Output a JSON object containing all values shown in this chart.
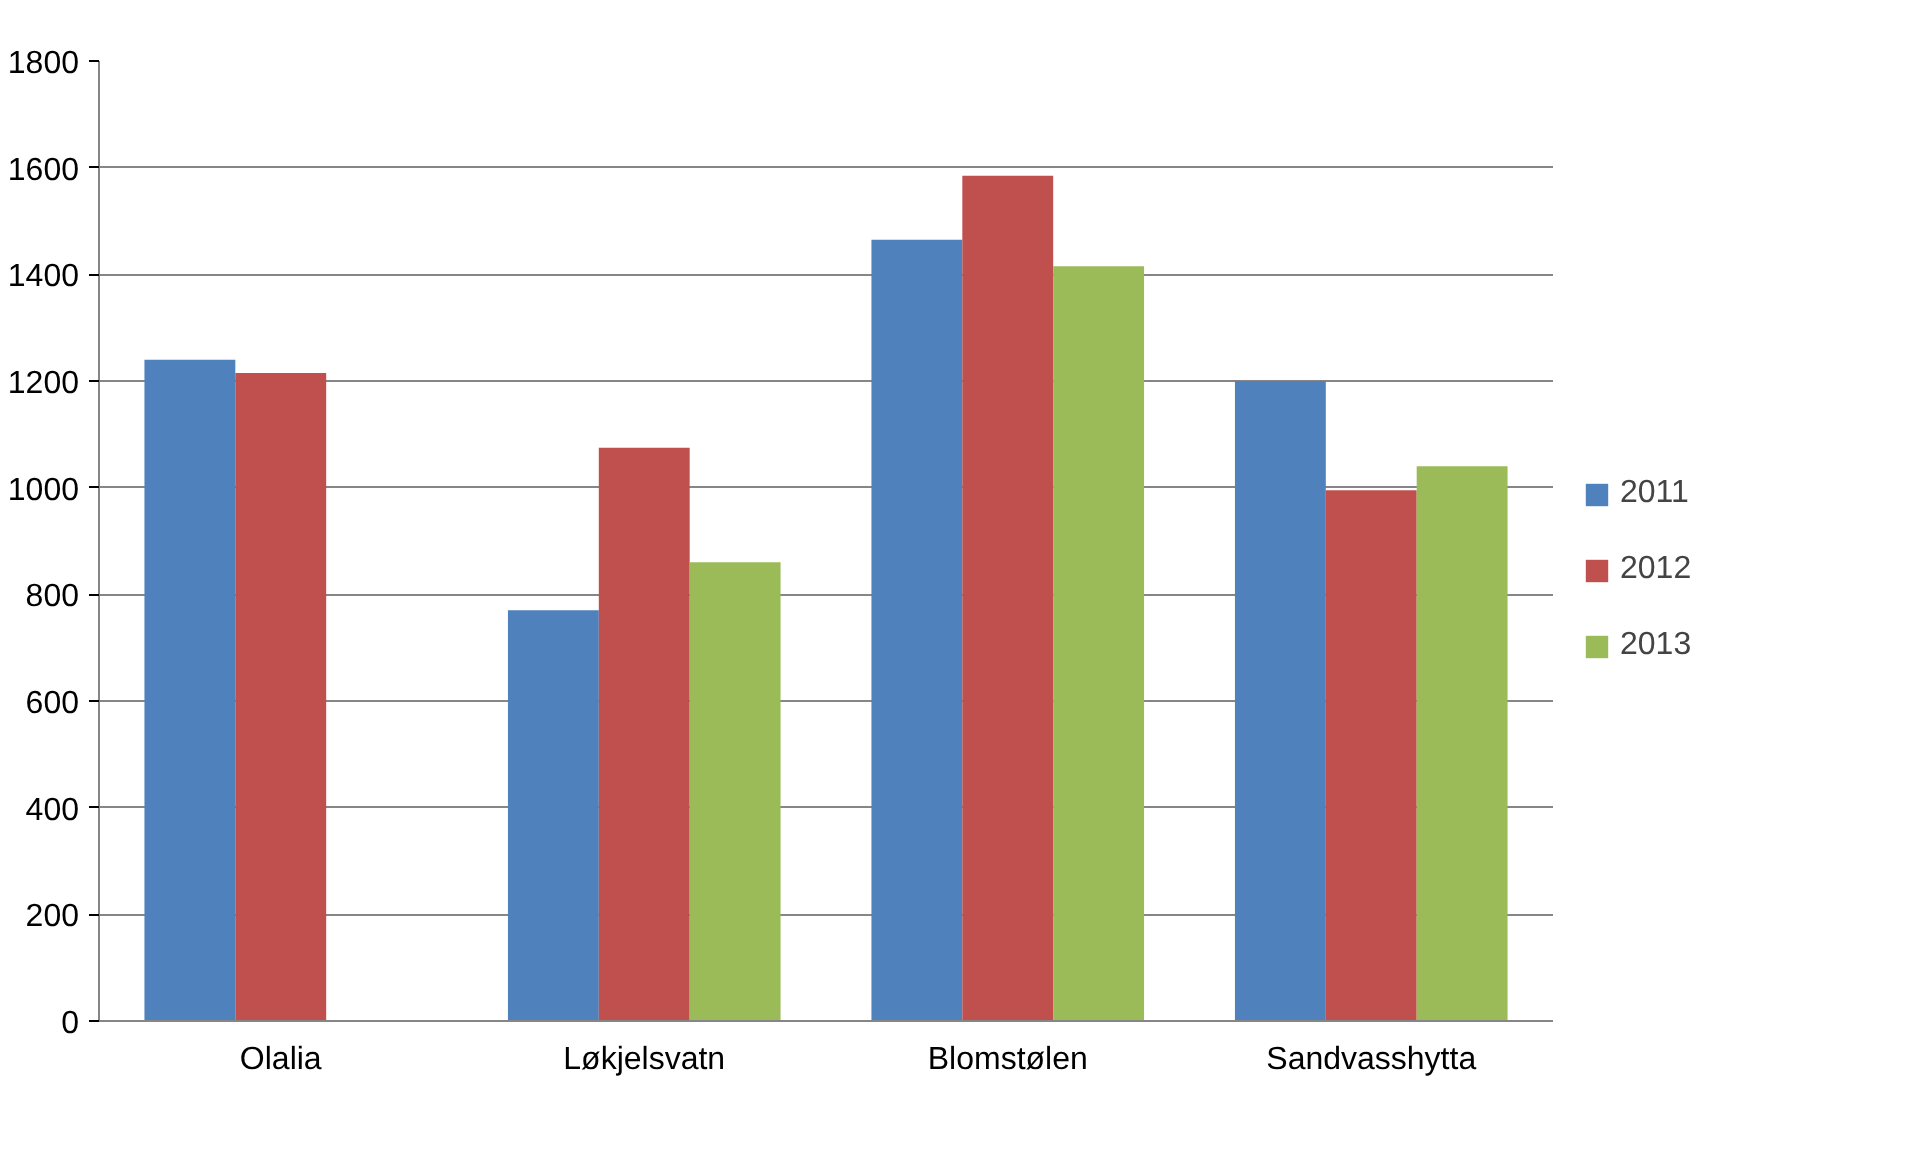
{
  "chart_data": {
    "type": "bar",
    "categories": [
      "Olalia",
      "Løkjelsvatn",
      "Blomstølen",
      "Sandvasshytta"
    ],
    "series": [
      {
        "name": "2011",
        "color": "#4f81bd",
        "values": [
          1240,
          770,
          1465,
          1200
        ]
      },
      {
        "name": "2012",
        "color": "#c0504d",
        "values": [
          1215,
          1075,
          1585,
          995
        ]
      },
      {
        "name": "2013",
        "color": "#9bbb59",
        "values": [
          null,
          860,
          1415,
          1040
        ]
      }
    ],
    "ylim": [
      0,
      1800
    ],
    "yticks": [
      0,
      200,
      400,
      600,
      800,
      1000,
      1200,
      1400,
      1600,
      1800
    ],
    "grid": "y",
    "legend": "right"
  }
}
